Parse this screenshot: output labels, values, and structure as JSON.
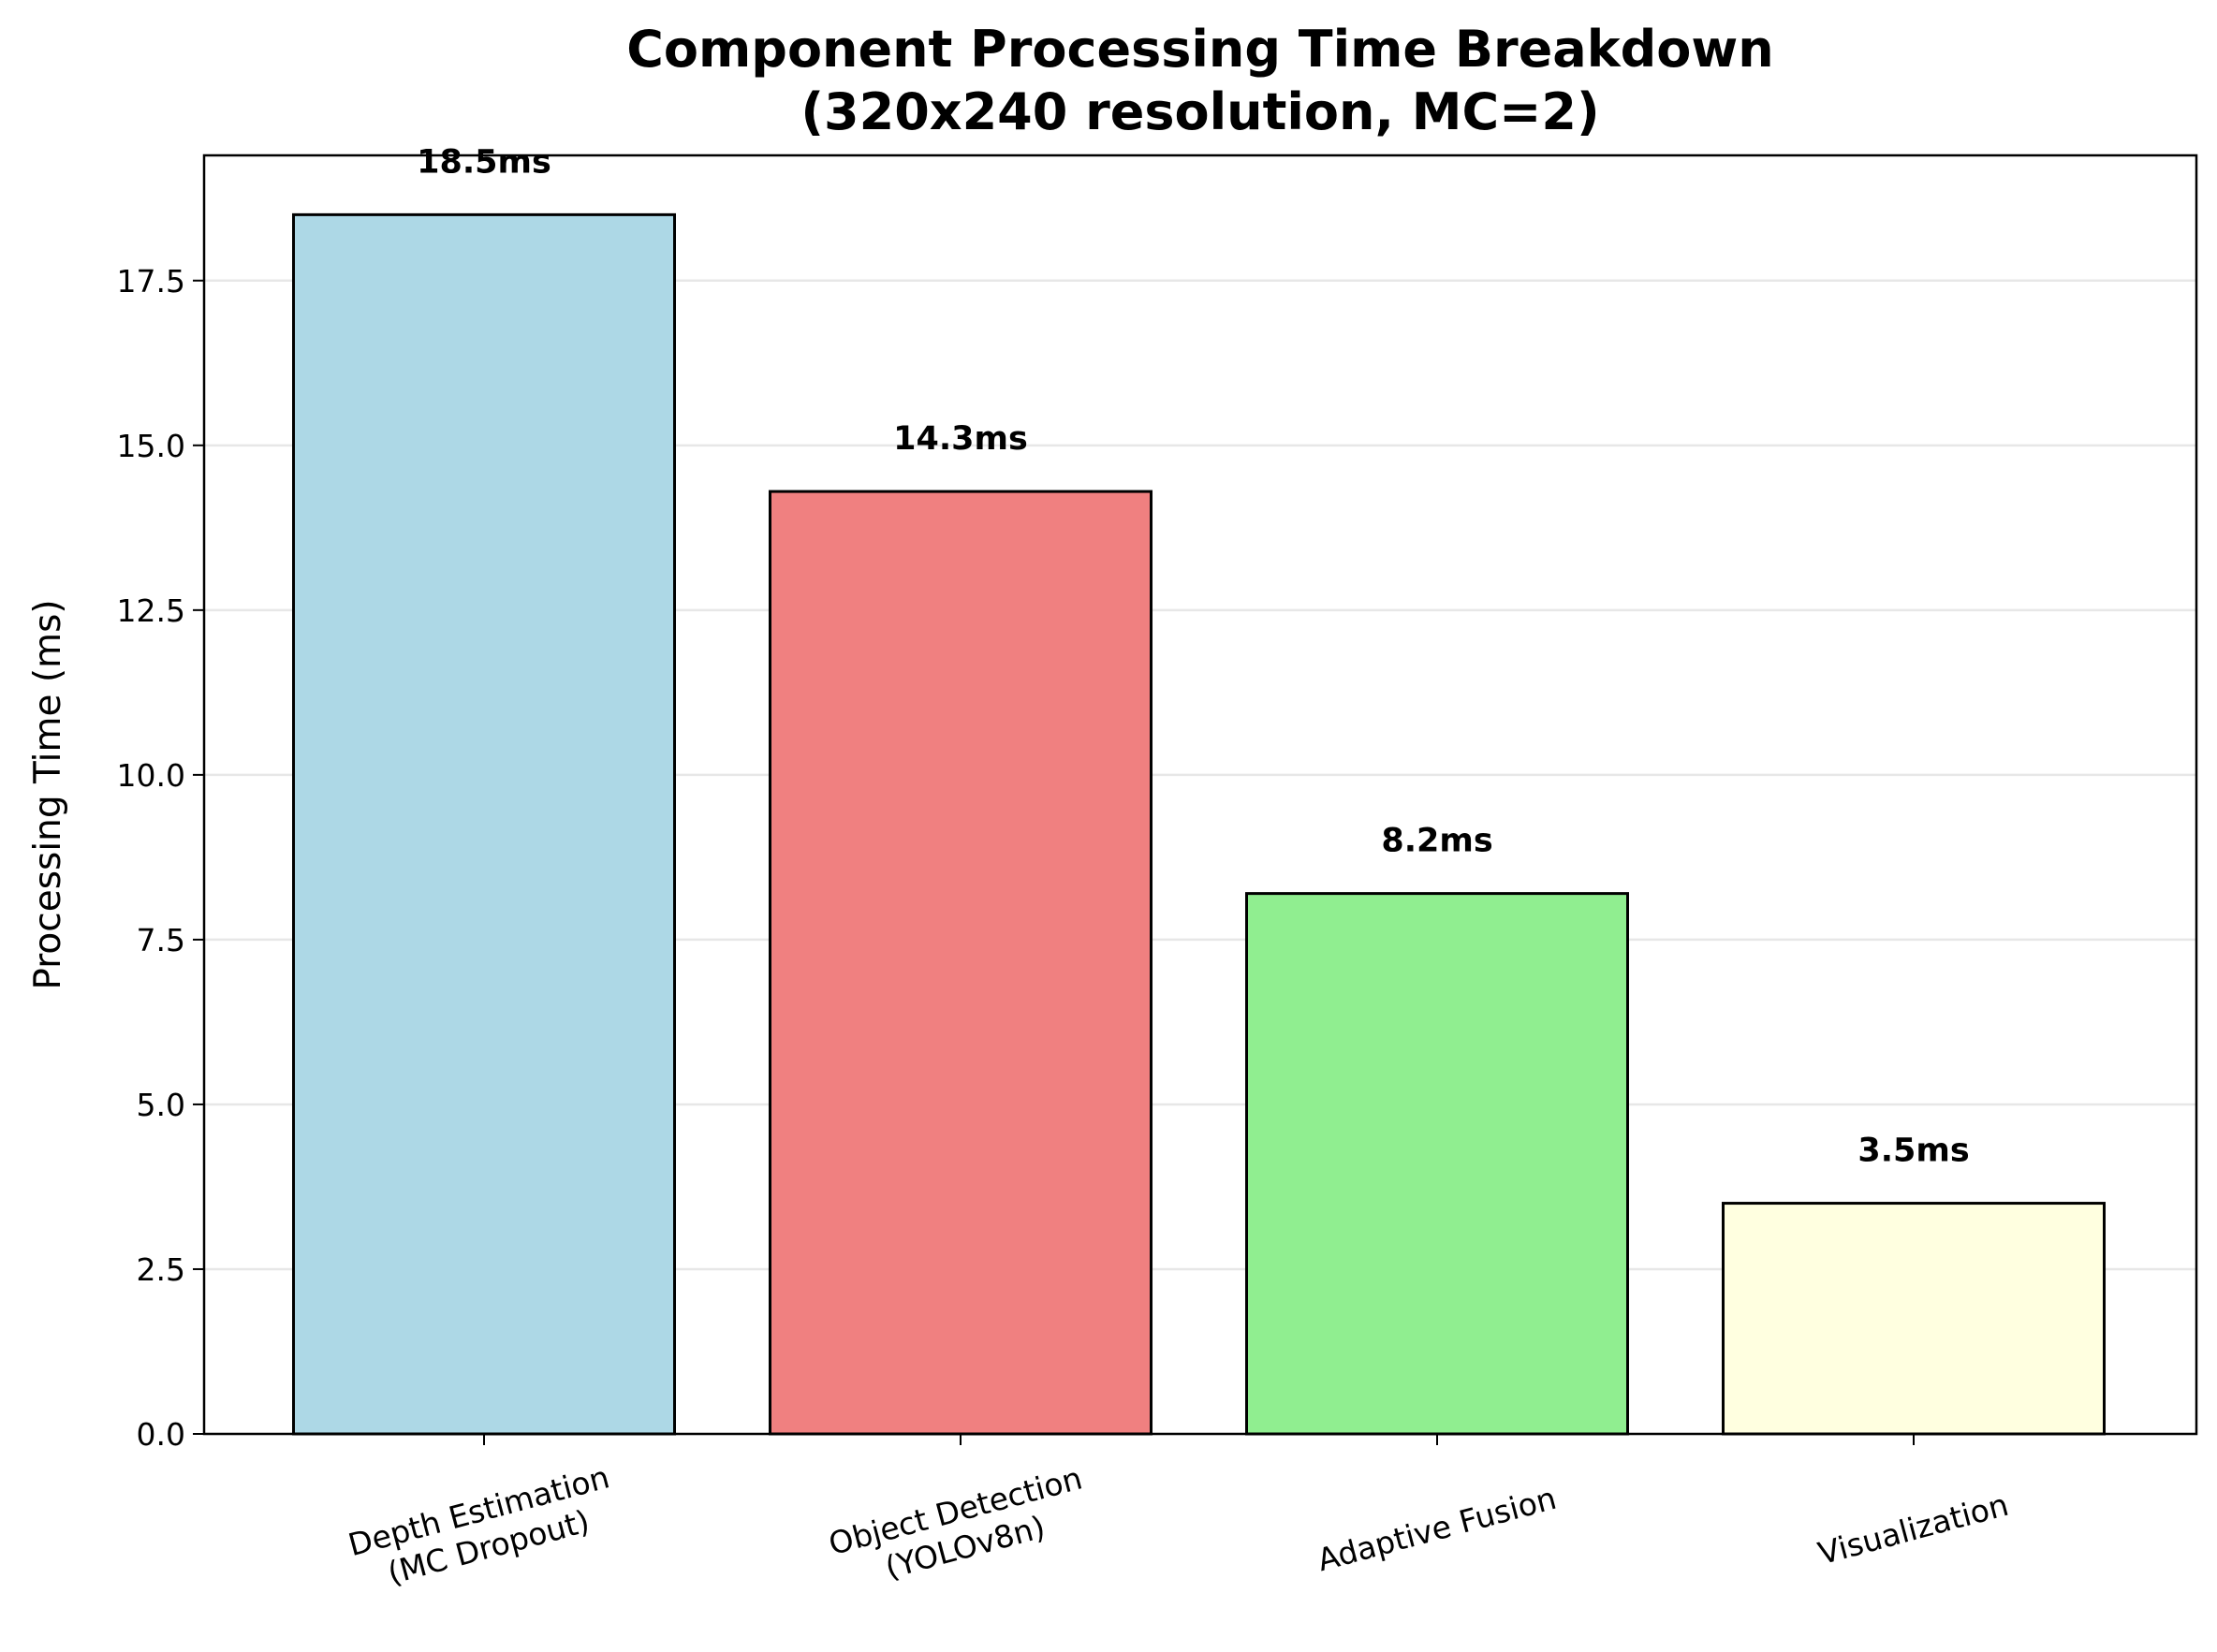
{
  "chart_data": {
    "type": "bar",
    "title_lines": [
      "Component Processing Time Breakdown",
      "(320x240 resolution, MC=2)"
    ],
    "xlabel": "",
    "ylabel": "Processing Time (ms)",
    "categories": [
      [
        "Depth Estimation",
        "(MC Dropout)"
      ],
      [
        "Object Detection",
        "(YOLOv8n)"
      ],
      [
        "Adaptive Fusion"
      ],
      [
        "Visualization"
      ]
    ],
    "values": [
      18.5,
      14.3,
      8.2,
      3.5
    ],
    "data_labels": [
      "18.5ms",
      "14.3ms",
      "8.2ms",
      "3.5ms"
    ],
    "colors": [
      "#add8e6",
      "#f08080",
      "#90ee90",
      "#ffffe0"
    ],
    "edge_color": "#000000",
    "ylim": [
      0,
      19.4
    ],
    "yticks": [
      0.0,
      2.5,
      5.0,
      7.5,
      10.0,
      12.5,
      15.0,
      17.5
    ],
    "ytick_labels": [
      "0.0",
      "2.5",
      "5.0",
      "7.5",
      "10.0",
      "12.5",
      "15.0",
      "17.5"
    ],
    "grid": "y",
    "legend": "none"
  }
}
